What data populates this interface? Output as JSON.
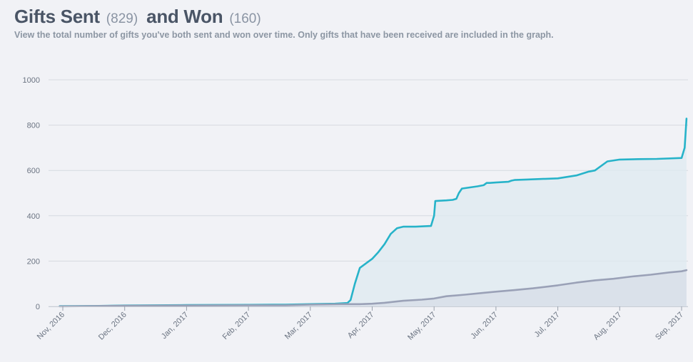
{
  "header": {
    "sent_title": "Gifts Sent",
    "sent_count": "(829)",
    "won_title": "and Won",
    "won_count": "(160)",
    "subtitle": "View the total number of gifts you've both sent and won over time. Only gifts that have been received are included in the graph."
  },
  "colors": {
    "sent_line": "#27b3c9",
    "sent_fill": "#dde9f0",
    "won_line": "#9aa1b7",
    "won_fill": "#d7dee7",
    "grid": "#d6d9e0"
  },
  "chart_data": {
    "type": "area",
    "title": "Gifts Sent (829) and Won (160)",
    "xlabel": "",
    "ylabel": "",
    "ylim": [
      0,
      1000
    ],
    "yticks": [
      0,
      200,
      400,
      600,
      800,
      1000
    ],
    "xtick_labels": [
      "Nov, 2016",
      "Dec, 2016",
      "Jan, 2017",
      "Feb, 2017",
      "Mar, 2017",
      "Apr, 2017",
      "May, 2017",
      "Jun, 2017",
      "Jul, 2017",
      "Aug, 2017",
      "Sep, 2017"
    ],
    "x_unit": "month index (0 = Nov 2016, 10 = Sep 2017)",
    "grid": true,
    "legend": "none",
    "series": [
      {
        "name": "Gifts Sent",
        "x": [
          -0.05,
          0.5,
          1.0,
          2.0,
          3.0,
          3.6,
          4.0,
          4.4,
          4.6,
          4.65,
          4.72,
          4.8,
          4.9,
          5.0,
          5.1,
          5.2,
          5.3,
          5.4,
          5.5,
          5.7,
          5.95,
          6.0,
          6.02,
          6.2,
          6.3,
          6.36,
          6.4,
          6.45,
          6.7,
          6.8,
          6.85,
          6.9,
          7.0,
          7.2,
          7.25,
          7.3,
          7.5,
          8.0,
          8.3,
          8.5,
          8.6,
          8.8,
          9.0,
          9.3,
          9.6,
          10.0,
          10.05,
          10.08
        ],
        "values": [
          1,
          2,
          4,
          6,
          7,
          8,
          10,
          12,
          15,
          28,
          100,
          170,
          190,
          210,
          240,
          275,
          320,
          345,
          352,
          352,
          355,
          400,
          465,
          468,
          470,
          475,
          500,
          520,
          530,
          535,
          545,
          545,
          547,
          550,
          555,
          558,
          560,
          565,
          578,
          595,
          600,
          640,
          648,
          650,
          651,
          655,
          700,
          829
        ]
      },
      {
        "name": "Gifts Won",
        "x": [
          -0.05,
          1.0,
          2.0,
          3.0,
          3.6,
          4.0,
          4.5,
          4.8,
          5.0,
          5.2,
          5.5,
          5.8,
          6.0,
          6.2,
          6.5,
          6.8,
          7.0,
          7.3,
          7.6,
          8.0,
          8.3,
          8.6,
          8.9,
          9.2,
          9.5,
          9.8,
          10.0,
          10.08
        ],
        "values": [
          0,
          3,
          4,
          5,
          5,
          8,
          10,
          10,
          12,
          16,
          25,
          30,
          35,
          45,
          52,
          60,
          65,
          72,
          80,
          93,
          105,
          115,
          122,
          132,
          140,
          150,
          155,
          160
        ]
      }
    ]
  }
}
